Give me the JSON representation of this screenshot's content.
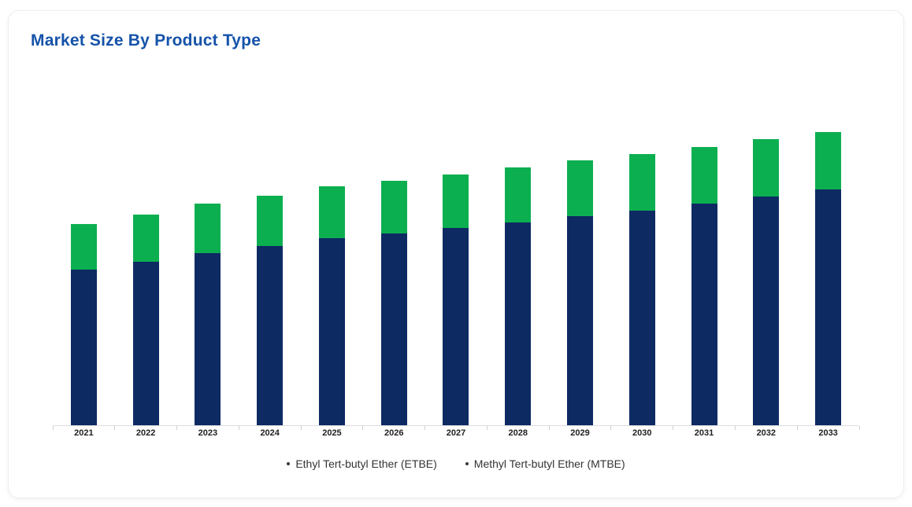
{
  "card": {
    "title": "Market Size By Product Type"
  },
  "chart_data": {
    "type": "bar",
    "stacked": true,
    "title": "Market Size By Product Type",
    "categories": [
      "2021",
      "2022",
      "2023",
      "2024",
      "2025",
      "2026",
      "2027",
      "2028",
      "2029",
      "2030",
      "2031",
      "2032",
      "2033"
    ],
    "series": [
      {
        "name": "Methyl Tert-butyl Ether (MTBE)",
        "key": "mtbe",
        "color": "#0d2a63",
        "values": [
          49.5,
          52,
          54.75,
          57,
          59.5,
          61,
          62.75,
          64.5,
          66.5,
          68.25,
          70.5,
          72.75,
          75
        ]
      },
      {
        "name": "Ethyl Tert-butyl Ether (ETBE)",
        "key": "etbe",
        "color": "#0caf50",
        "values": [
          14.5,
          15,
          15.75,
          16,
          16.5,
          16.75,
          17,
          17.5,
          17.75,
          18,
          18,
          18.25,
          18.25
        ]
      }
    ],
    "legend_items": [
      {
        "label": "Ethyl Tert-butyl Ether (ETBE)",
        "key": "etbe"
      },
      {
        "label": "Methyl Tert-butyl Ether (MTBE)",
        "key": "mtbe"
      }
    ],
    "xlabel": "",
    "ylabel": "",
    "ylim": [
      0,
      100
    ],
    "y_axis_labels_visible": false,
    "grid": false,
    "legend_position": "bottom",
    "colors": {
      "title_text": "#1553a9",
      "axis_line": "#dcdcdc",
      "tick": "#cfcfcf",
      "x_label_text": "#1f1f1f",
      "legend_text": "#333333"
    }
  }
}
